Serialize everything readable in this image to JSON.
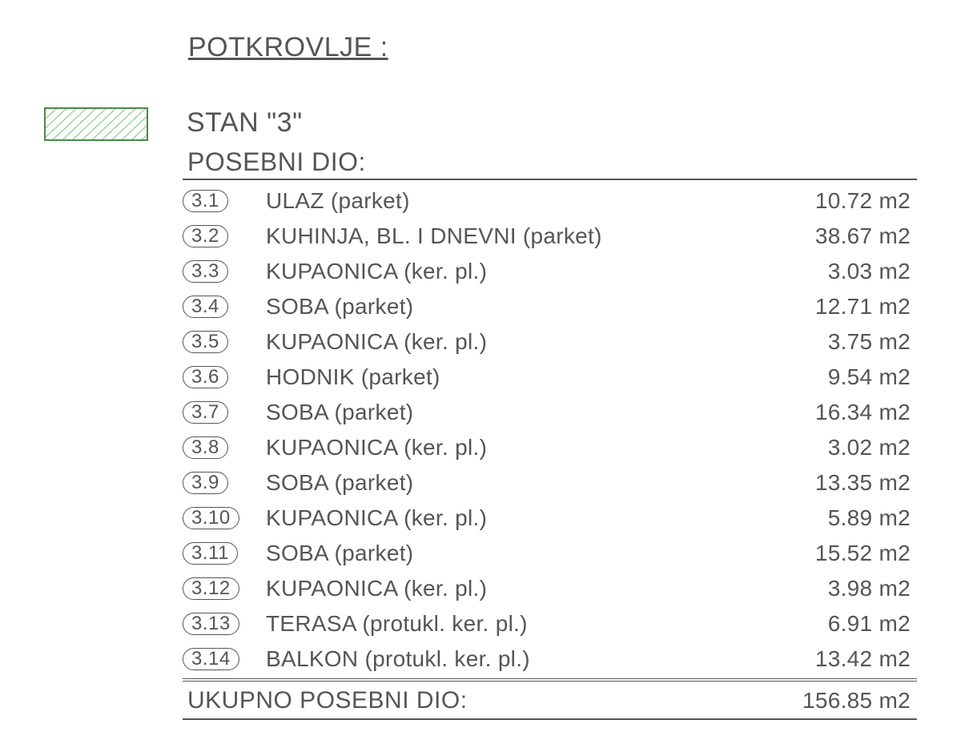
{
  "page": {
    "background_color": "#ffffff",
    "text_color": "#555555",
    "font_family": "Arial"
  },
  "title": "POTKROVLJE :",
  "hatch": {
    "border_color": "#4a8b4a",
    "stroke_color": "#6fbf6f",
    "stroke_width": 2,
    "spacing": 9,
    "angle_deg": 45
  },
  "apartment": {
    "name": "STAN \"3\"",
    "section_title": "POSEBNI DIO:",
    "unit": "m2",
    "rooms": [
      {
        "id": "3.1",
        "label": "ULAZ (parket)",
        "area": "10.72"
      },
      {
        "id": "3.2",
        "label": "KUHINJA, BL. I DNEVNI (parket)",
        "area": "38.67"
      },
      {
        "id": "3.3",
        "label": "KUPAONICA (ker. pl.)",
        "area": "3.03"
      },
      {
        "id": "3.4",
        "label": "SOBA (parket)",
        "area": "12.71"
      },
      {
        "id": "3.5",
        "label": "KUPAONICA (ker. pl.)",
        "area": "3.75"
      },
      {
        "id": "3.6",
        "label": "HODNIK (parket)",
        "area": "9.54"
      },
      {
        "id": "3.7",
        "label": "SOBA (parket)",
        "area": "16.34"
      },
      {
        "id": "3.8",
        "label": "KUPAONICA (ker. pl.)",
        "area": "3.02"
      },
      {
        "id": "3.9",
        "label": "SOBA (parket)",
        "area": "13.35"
      },
      {
        "id": "3.10",
        "label": "KUPAONICA (ker. pl.)",
        "area": "5.89"
      },
      {
        "id": "3.11",
        "label": "SOBA (parket)",
        "area": "15.52"
      },
      {
        "id": "3.12",
        "label": "KUPAONICA (ker. pl.)",
        "area": "3.98"
      },
      {
        "id": "3.13",
        "label": "TERASA (protukl. ker. pl.)",
        "area": "6.91"
      },
      {
        "id": "3.14",
        "label": "BALKON (protukl. ker. pl.)",
        "area": "13.42"
      }
    ],
    "total_label": "UKUPNO POSEBNI DIO:",
    "total_area": "156.85"
  }
}
